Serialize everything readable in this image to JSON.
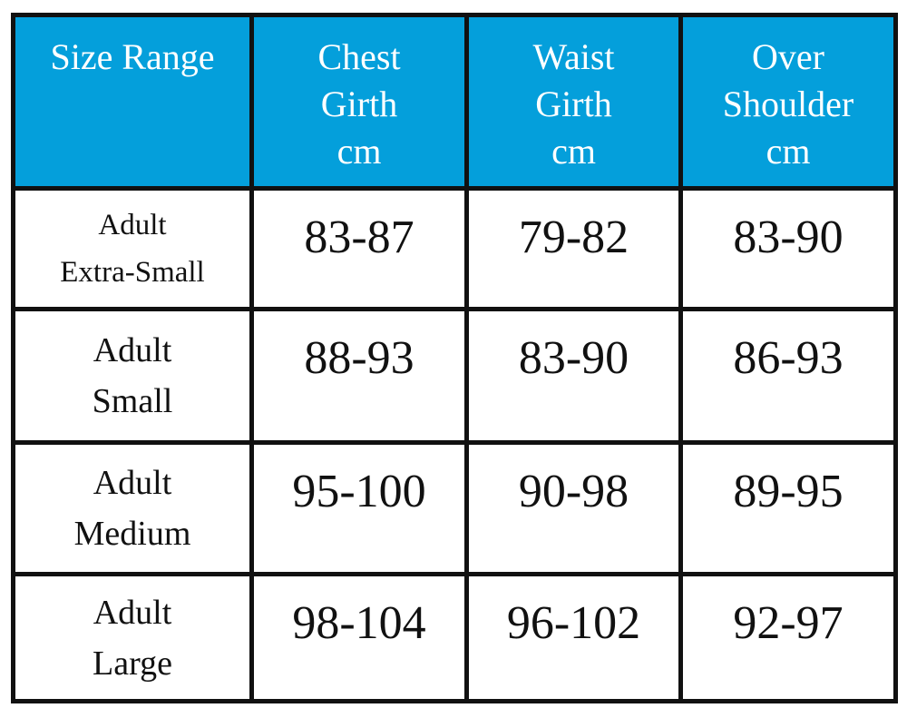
{
  "table": {
    "header": [
      [
        "Size Range"
      ],
      [
        "Chest",
        "Girth",
        "cm"
      ],
      [
        "Waist",
        "Girth",
        "cm"
      ],
      [
        "Over",
        "Shoulder",
        "cm"
      ]
    ],
    "rows": [
      {
        "label": [
          "Adult",
          "Extra-Small"
        ],
        "values": [
          "83-87",
          "79-82",
          "83-90"
        ]
      },
      {
        "label": [
          "Adult",
          "Small"
        ],
        "values": [
          "88-93",
          "83-90",
          "86-93"
        ]
      },
      {
        "label": [
          "Adult",
          "Medium"
        ],
        "values": [
          "95-100",
          "90-98",
          "89-95"
        ]
      },
      {
        "label": [
          "Adult",
          "Large"
        ],
        "values": [
          "98-104",
          "96-102",
          "92-97"
        ]
      }
    ]
  }
}
